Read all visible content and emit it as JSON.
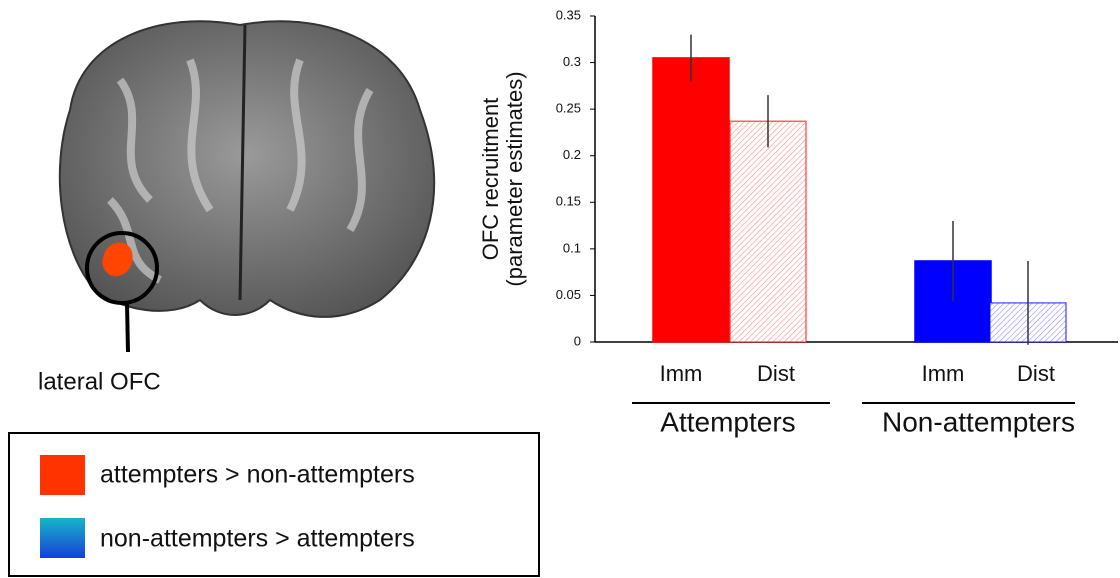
{
  "chart_data": {
    "type": "bar",
    "ylabel": [
      "OFC recruitment",
      "(parameter estimates)"
    ],
    "categories": [
      "Imm",
      "Dist",
      "Imm",
      "Dist"
    ],
    "values": [
      0.305,
      0.237,
      0.087,
      0.042
    ],
    "errors": [
      0.025,
      0.028,
      0.043,
      0.045
    ],
    "colors": [
      "#ff0000",
      "#ff0000",
      "#0000ff",
      "#0000ff"
    ],
    "hatched": [
      false,
      true,
      false,
      true
    ],
    "groups": [
      "Attempters",
      "Non-attempters"
    ],
    "ylim": [
      0,
      0.35
    ],
    "yticks": [
      0,
      0.05,
      0.1,
      0.15,
      0.2,
      0.25,
      0.3,
      0.35
    ]
  },
  "brain": {
    "label": "lateral OFC"
  },
  "legend": {
    "items": [
      "attempters > non-attempters",
      "non-attempters > attempters"
    ]
  }
}
